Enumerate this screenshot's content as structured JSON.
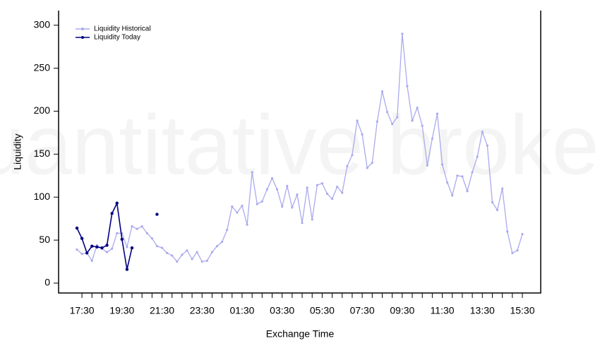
{
  "chart_data": {
    "type": "line",
    "watermark": "quantitative brokers",
    "xlabel": "Exchange Time",
    "ylabel": "Liquidity",
    "categories": [
      null,
      "17:30",
      null,
      null,
      null,
      null,
      null,
      null,
      null,
      "19:30",
      null,
      null,
      null,
      null,
      null,
      null,
      null,
      "21:30",
      null,
      null,
      null,
      null,
      null,
      null,
      null,
      "23:30",
      null,
      null,
      null,
      null,
      null,
      null,
      null,
      "01:30",
      null,
      null,
      null,
      null,
      null,
      null,
      null,
      "03:30",
      null,
      null,
      null,
      null,
      null,
      null,
      null,
      "05:30",
      null,
      null,
      null,
      null,
      null,
      null,
      null,
      "07:30",
      null,
      null,
      null,
      null,
      null,
      null,
      null,
      "09:30",
      null,
      null,
      null,
      null,
      null,
      null,
      null,
      "11:30",
      null,
      null,
      null,
      null,
      null,
      null,
      null,
      "13:30",
      null,
      null,
      null,
      null,
      null,
      null,
      null,
      "15:30"
    ],
    "series": [
      {
        "name": "Liquidity Historical",
        "color": "#aaaaee",
        "values": [
          39,
          34,
          35,
          26,
          44,
          40,
          36,
          40,
          58,
          58,
          42,
          66,
          63,
          66,
          58,
          52,
          43,
          41,
          35,
          32,
          25,
          33,
          38,
          28,
          36,
          25,
          26,
          36,
          43,
          48,
          62,
          89,
          82,
          90,
          68,
          129,
          92,
          95,
          109,
          122,
          109,
          89,
          113,
          88,
          103,
          70,
          111,
          74,
          114,
          116,
          104,
          98,
          112,
          105,
          136,
          149,
          189,
          173,
          134,
          140,
          188,
          223,
          199,
          185,
          193,
          290,
          229,
          189,
          204,
          183,
          137,
          168,
          197,
          138,
          117,
          102,
          125,
          124,
          107,
          129,
          147,
          176,
          160,
          94,
          85,
          110,
          60,
          35,
          38,
          57
        ]
      },
      {
        "name": "Liquidity Today",
        "color": "#000080",
        "values": [
          64,
          52,
          35,
          43,
          42,
          41,
          44,
          81,
          93,
          51,
          16,
          41,
          null,
          null,
          null,
          null,
          80,
          null,
          null,
          null,
          null,
          null,
          null,
          null,
          null,
          null,
          null,
          null,
          null,
          null,
          null,
          null,
          null,
          null,
          null,
          null,
          null,
          null,
          null,
          null,
          null,
          null,
          null,
          null,
          null,
          null,
          null,
          null,
          null,
          null,
          null,
          null,
          null,
          null,
          null,
          null,
          null,
          null,
          null,
          null,
          null,
          null,
          null,
          null,
          null,
          null,
          null,
          null,
          null,
          null,
          null,
          null,
          null,
          null,
          null,
          null,
          null,
          null,
          null,
          null,
          null,
          null,
          null,
          null,
          null,
          null,
          null,
          null,
          null,
          null
        ]
      }
    ],
    "ylim": [
      -11.5,
      317
    ],
    "yticks": [
      0,
      50,
      100,
      150,
      200,
      250,
      300
    ],
    "legend": "upper left"
  }
}
